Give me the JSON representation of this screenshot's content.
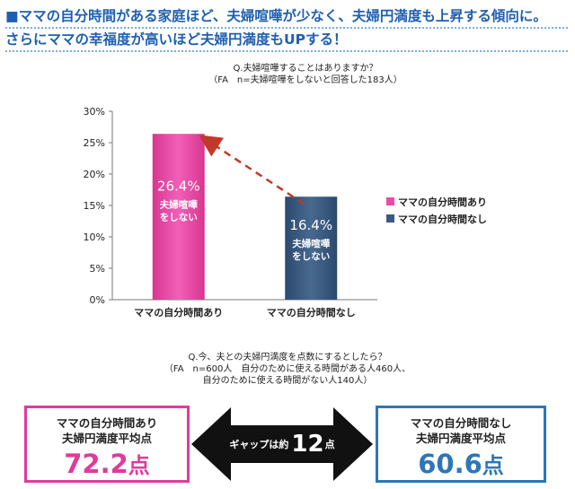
{
  "headline": {
    "line1": "■ママの自分時間がある家庭ほど、夫婦喧嘩が少なく、夫婦円満度も上昇する傾向に。",
    "line2": "さらにママの幸福度が高いほど夫婦円満度もUPする！"
  },
  "chart_data": {
    "type": "bar",
    "title": "Q.夫婦喧嘩することはありますか？",
    "subtitle": "（FA　n=夫婦喧嘩をしないと回答した183人）",
    "categories": [
      "ママの自分時間あり",
      "ママの自分時間なし"
    ],
    "values": [
      26.4,
      16.4
    ],
    "value_labels": [
      "26.4%",
      "16.4%"
    ],
    "bar_notes": [
      [
        "夫婦喧嘩",
        "をしない"
      ],
      [
        "夫婦喧嘩",
        "をしない"
      ]
    ],
    "colors": [
      "#e94ba8",
      "#3a5a80"
    ],
    "legend": [
      "ママの自分時間あり",
      "ママの自分時間なし"
    ],
    "legend_position": "right",
    "yticks": [
      "0%",
      "5%",
      "10%",
      "15%",
      "20%",
      "25%",
      "30%"
    ],
    "ylim": [
      0,
      30
    ],
    "grid": false,
    "xlabel": "",
    "ylabel": ""
  },
  "survey2": {
    "title": "Q.今、夫との夫婦円満度を点数にするとしたら？",
    "note1": "（FA　n=600人　自分のために使える時間がある人460人、",
    "note2": "自分のために使える時間がない人140人）"
  },
  "left_box": {
    "line1": "ママの自分時間あり",
    "line2": "夫婦円満度平均点",
    "value": "72.2",
    "unit": "点"
  },
  "right_box": {
    "line1": "ママの自分時間なし",
    "line2": "夫婦円満度平均点",
    "value": "60.6",
    "unit": "点"
  },
  "gap": {
    "prefix": "ギャップは約",
    "value": "12",
    "unit": "点"
  },
  "colors": {
    "pink": "#e03a9c",
    "blue": "#2d76b8",
    "headline": "#1f5fb0",
    "arrow_dashed": "#c0392b"
  }
}
